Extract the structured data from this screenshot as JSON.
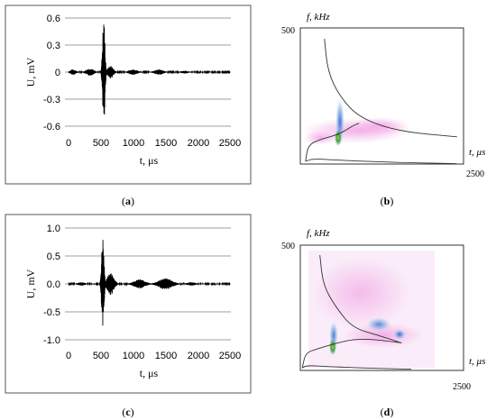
{
  "chart_data": [
    {
      "id": "a",
      "type": "line",
      "panel_label": "a",
      "xlabel": "t, μs",
      "ylabel": "U, mV",
      "xlim": [
        0,
        2500
      ],
      "ylim": [
        -0.6,
        0.6
      ],
      "x_ticks": [
        "0",
        "500",
        "1000",
        "1500",
        "2000",
        "2500"
      ],
      "y_ticks": [
        "0.6",
        "0.3",
        "0",
        "-0.3",
        "-0.6"
      ],
      "grid": "horizontal",
      "series": [
        {
          "packets": [
            {
              "center": 70,
              "amplitude": 0.03,
              "width": 60
            },
            {
              "center": 330,
              "amplitude": 0.04,
              "width": 80
            },
            {
              "center": 545,
              "amplitude": 0.6,
              "width": 25
            },
            {
              "center": 650,
              "amplitude": 0.07,
              "width": 60
            },
            {
              "center": 1000,
              "amplitude": 0.03,
              "width": 90
            },
            {
              "center": 1400,
              "amplitude": 0.03,
              "width": 90
            },
            {
              "center": 1800,
              "amplitude": 0.015,
              "width": 80
            }
          ]
        }
      ]
    },
    {
      "id": "c",
      "type": "line",
      "panel_label": "c",
      "xlabel": "t, μs",
      "ylabel": "U, mV",
      "xlim": [
        0,
        2500
      ],
      "ylim": [
        -1.0,
        1.0
      ],
      "x_ticks": [
        "0",
        "500",
        "1000",
        "1500",
        "2000",
        "2500"
      ],
      "y_ticks": [
        "1.0",
        "0.5",
        "0.0",
        "-0.5",
        "-1.0"
      ],
      "grid": "horizontal",
      "series": [
        {
          "packets": [
            {
              "center": 200,
              "amplitude": 0.03,
              "width": 80
            },
            {
              "center": 530,
              "amplitude": 0.85,
              "width": 25
            },
            {
              "center": 650,
              "amplitude": 0.2,
              "width": 70
            },
            {
              "center": 1100,
              "amplitude": 0.08,
              "width": 120
            },
            {
              "center": 1500,
              "amplitude": 0.1,
              "width": 140
            },
            {
              "center": 1900,
              "amplitude": 0.03,
              "width": 90
            }
          ]
        }
      ]
    },
    {
      "id": "b",
      "type": "heatmap",
      "panel_label": "b",
      "xlabel": "t, μs",
      "ylabel": "f, kHz",
      "x_max_label": "2500",
      "y_max_label": "500",
      "xlim": [
        0,
        2500
      ],
      "ylim": [
        0,
        500
      ],
      "curves": [
        {
          "role": "upper-branch",
          "points": [
            [
              370,
              460
            ],
            [
              420,
              340
            ],
            [
              600,
              250
            ],
            [
              900,
              170
            ],
            [
              1500,
              120
            ],
            [
              2400,
              100
            ]
          ]
        },
        {
          "role": "lower-branch",
          "points": [
            [
              80,
              10
            ],
            [
              120,
              70
            ],
            [
              300,
              90
            ],
            [
              600,
              110
            ],
            [
              800,
              140
            ],
            [
              900,
              150
            ]
          ]
        },
        {
          "role": "low-tail",
          "points": [
            [
              80,
              10
            ],
            [
              200,
              20
            ],
            [
              600,
              14
            ],
            [
              1500,
              5
            ],
            [
              2400,
              2
            ]
          ]
        }
      ]
    },
    {
      "id": "d",
      "type": "heatmap",
      "panel_label": "d",
      "xlabel": "t, μs",
      "ylabel": "f, kHz",
      "x_max_label": "2500",
      "y_max_label": "500",
      "xlim": [
        0,
        2500
      ],
      "ylim": [
        0,
        500
      ],
      "curves": [
        {
          "role": "upper-branch",
          "points": [
            [
              300,
              460
            ],
            [
              350,
              340
            ],
            [
              550,
              250
            ],
            [
              800,
              170
            ],
            [
              1200,
              140
            ],
            [
              1550,
              110
            ]
          ]
        },
        {
          "role": "lower-branch",
          "points": [
            [
              30,
              10
            ],
            [
              80,
              70
            ],
            [
              250,
              85
            ],
            [
              500,
              105
            ],
            [
              900,
              130
            ],
            [
              1550,
              110
            ]
          ]
        },
        {
          "role": "low-tail",
          "points": [
            [
              30,
              10
            ],
            [
              100,
              20
            ],
            [
              400,
              15
            ],
            [
              1200,
              8
            ],
            [
              1700,
              5
            ]
          ]
        }
      ]
    }
  ]
}
